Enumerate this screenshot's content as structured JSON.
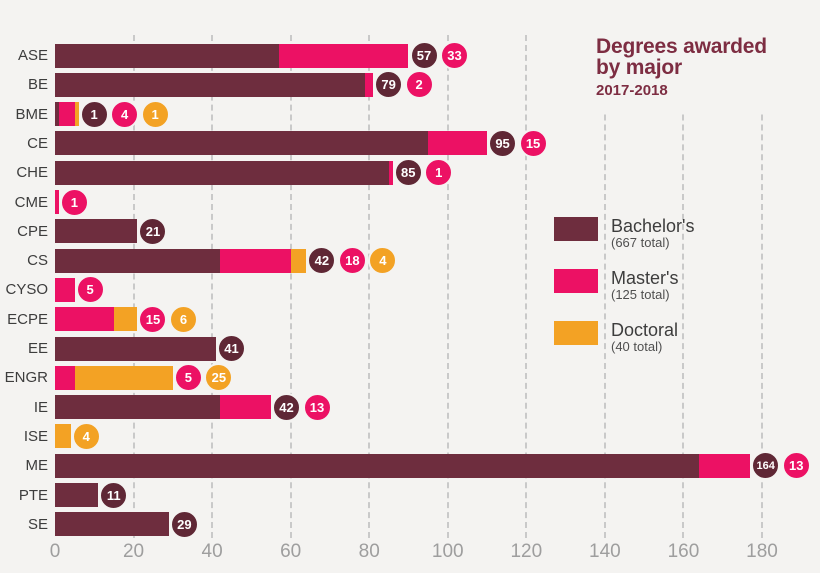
{
  "title": {
    "line1": "Degrees awarded",
    "line2": "by major",
    "subtitle": "2017-2018"
  },
  "legend": [
    {
      "label": "Bachelor's",
      "sublabel": "(667 total)",
      "color": "#6e2d3e"
    },
    {
      "label": "Master's",
      "sublabel": "(125 total)",
      "color": "#ec1164"
    },
    {
      "label": "Doctoral",
      "sublabel": "(40 total)",
      "color": "#f3a224"
    }
  ],
  "colors": {
    "background": "#f4f3f1",
    "title": "#7d2d42",
    "bachelors_bar": "#6e2d3e",
    "bachelors_badge": "#5f2735",
    "masters_bar": "#ec1164",
    "masters_badge": "#ec1164",
    "doctoral_bar": "#f3a224",
    "doctoral_badge": "#f3a224",
    "gridline": "#c9c9c9",
    "axis_label": "#9e9e9e",
    "category_label": "#3d3d3d",
    "badge_text": "#ffffff"
  },
  "chart_data": {
    "type": "bar",
    "orientation": "horizontal",
    "stacked": true,
    "title": "Degrees awarded by major",
    "subtitle": "2017-2018",
    "categories": [
      "ASE",
      "BE",
      "BME",
      "CE",
      "CHE",
      "CME",
      "CPE",
      "CS",
      "CYSO",
      "ECPE",
      "EE",
      "ENGR",
      "IE",
      "ISE",
      "ME",
      "PTE",
      "SE"
    ],
    "series": [
      {
        "name": "Bachelor's",
        "total": 667,
        "color": "#6e2d3e",
        "badge_color": "#5f2735",
        "values": [
          57,
          79,
          1,
          95,
          85,
          0,
          21,
          42,
          0,
          0,
          41,
          0,
          42,
          0,
          164,
          11,
          29
        ]
      },
      {
        "name": "Master's",
        "total": 125,
        "color": "#ec1164",
        "badge_color": "#ec1164",
        "values": [
          33,
          2,
          4,
          15,
          1,
          1,
          0,
          18,
          5,
          15,
          0,
          5,
          13,
          0,
          13,
          0,
          0
        ]
      },
      {
        "name": "Doctoral",
        "total": 40,
        "color": "#f3a224",
        "badge_color": "#f3a224",
        "values": [
          0,
          0,
          1,
          0,
          0,
          0,
          0,
          4,
          0,
          6,
          0,
          25,
          0,
          4,
          0,
          0,
          0
        ]
      }
    ],
    "x_ticks": [
      0,
      20,
      40,
      60,
      80,
      100,
      120,
      140,
      160,
      180
    ],
    "xlim": [
      0,
      180
    ],
    "grid": "dashed-vertical",
    "legend_position": "right",
    "value_labels": "circular badges after bar end, one per non-zero segment, in series order"
  }
}
